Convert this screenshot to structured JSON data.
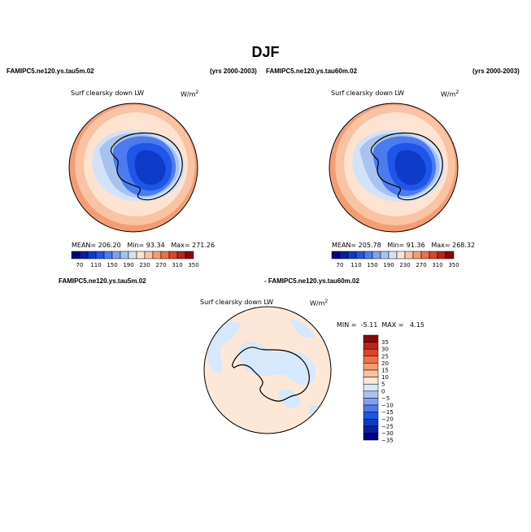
{
  "page": {
    "title": "DJF"
  },
  "panels": [
    {
      "case_label": "FAMIPC5.ne120.ys.tau5m.02",
      "years_label": "(yrs 2000-2003)",
      "variable": "Surf clearsky down LW",
      "units_base": "W/m",
      "units_exp": "2",
      "stats": {
        "mean_label": "MEAN=",
        "mean": "206.20",
        "min_label": "Min=",
        "min": "93.34",
        "max_label": "Max=",
        "max": "271.26"
      }
    },
    {
      "case_label": "FAMIPC5.ne120.ys.tau60m.02",
      "years_label": "(yrs 2000-2003)",
      "variable": "Surf clearsky down LW",
      "units_base": "W/m",
      "units_exp": "2",
      "stats": {
        "mean_label": "MEAN=",
        "mean": "205.78",
        "min_label": "Min=",
        "min": "91.36",
        "max_label": "Max=",
        "max": "268.32"
      }
    }
  ],
  "diff_panel": {
    "case_left": "FAMIPC5.ne120.ys.tau5m.02",
    "case_right": "- FAMIPC5.ne120.ys.tau60m.02",
    "variable": "Surf clearsky down LW",
    "units_base": "W/m",
    "units_exp": "2",
    "stats": {
      "min_label": "MIN =",
      "min": "-5.11",
      "max_label": "MAX =",
      "max": "4.15"
    }
  },
  "colors": {
    "abs_scale": [
      "#00007f",
      "#0a1e9e",
      "#0d3bc8",
      "#1d56e8",
      "#4a7bf0",
      "#7ea2f0",
      "#a9c3f0",
      "#d2e3f8",
      "#fde3d0",
      "#f9c3a4",
      "#f49d75",
      "#ed7245",
      "#d9462a",
      "#b82516",
      "#8a0808"
    ],
    "diff_scale": [
      "#00007f",
      "#0a1e9e",
      "#0d3bc8",
      "#1d56e8",
      "#4a7bf0",
      "#7ea2f0",
      "#a9c3f0",
      "#d6e8fb",
      "#fde8d8",
      "#f9c3a4",
      "#f49d75",
      "#ed7245",
      "#d9462a",
      "#b82516",
      "#8a0808"
    ]
  },
  "chart_data": [
    {
      "type": "map",
      "title": "Surf clearsky down LW",
      "subtitle": "FAMIPC5.ne120.ys.tau5m.02 (yrs 2000-2003)",
      "projection": "south-polar stereographic",
      "contour_levels": [
        70,
        90,
        110,
        130,
        150,
        170,
        190,
        210,
        230,
        250,
        270,
        290,
        310,
        330,
        350
      ],
      "colorbar_labels": [
        "70",
        "110",
        "150",
        "190",
        "230",
        "270",
        "310",
        "350"
      ],
      "mean": 206.2,
      "min": 93.34,
      "max": 271.26
    },
    {
      "type": "map",
      "title": "Surf clearsky down LW",
      "subtitle": "FAMIPC5.ne120.ys.tau60m.02 (yrs 2000-2003)",
      "projection": "south-polar stereographic",
      "contour_levels": [
        70,
        90,
        110,
        130,
        150,
        170,
        190,
        210,
        230,
        250,
        270,
        290,
        310,
        330,
        350
      ],
      "colorbar_labels": [
        "70",
        "110",
        "150",
        "190",
        "230",
        "270",
        "310",
        "350"
      ],
      "mean": 205.78,
      "min": 91.36,
      "max": 268.32
    },
    {
      "type": "map",
      "title": "Surf clearsky down LW",
      "subtitle": "FAMIPC5.ne120.ys.tau5m.02 - FAMIPC5.ne120.ys.tau60m.02",
      "projection": "south-polar stereographic",
      "contour_levels": [
        -35,
        -30,
        -25,
        -20,
        -15,
        -10,
        -5,
        0,
        5,
        10,
        15,
        20,
        25,
        30,
        35
      ],
      "colorbar_labels": [
        "35",
        "30",
        "25",
        "20",
        "15",
        "10",
        "5",
        "0",
        "−5",
        "−10",
        "−15",
        "−20",
        "−25",
        "−30",
        "−35"
      ],
      "min": -5.11,
      "max": 4.15
    }
  ]
}
